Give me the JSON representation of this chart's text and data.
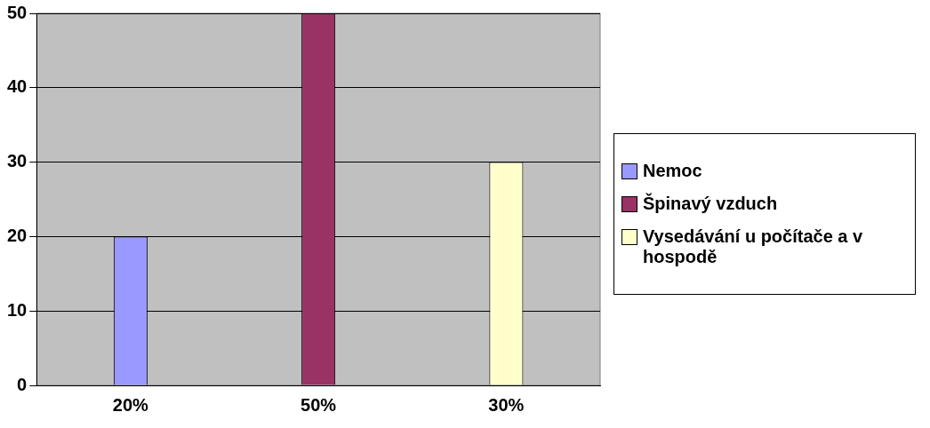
{
  "chart_data": {
    "type": "bar",
    "categories": [
      "20%",
      "50%",
      "30%"
    ],
    "series": [
      {
        "name": "Nemoc",
        "color": "#9999ff",
        "values": [
          20,
          null,
          null
        ]
      },
      {
        "name": "Špinavý vzduch",
        "color": "#993366",
        "values": [
          null,
          50,
          null
        ]
      },
      {
        "name": "Vysedávání u počítače a v hospodě",
        "color": "#ffffcc",
        "values": [
          null,
          null,
          30
        ]
      }
    ],
    "ylim": [
      0,
      50
    ],
    "yticks": [
      0,
      10,
      20,
      30,
      40,
      50
    ],
    "grid": "y",
    "legend": "right"
  }
}
